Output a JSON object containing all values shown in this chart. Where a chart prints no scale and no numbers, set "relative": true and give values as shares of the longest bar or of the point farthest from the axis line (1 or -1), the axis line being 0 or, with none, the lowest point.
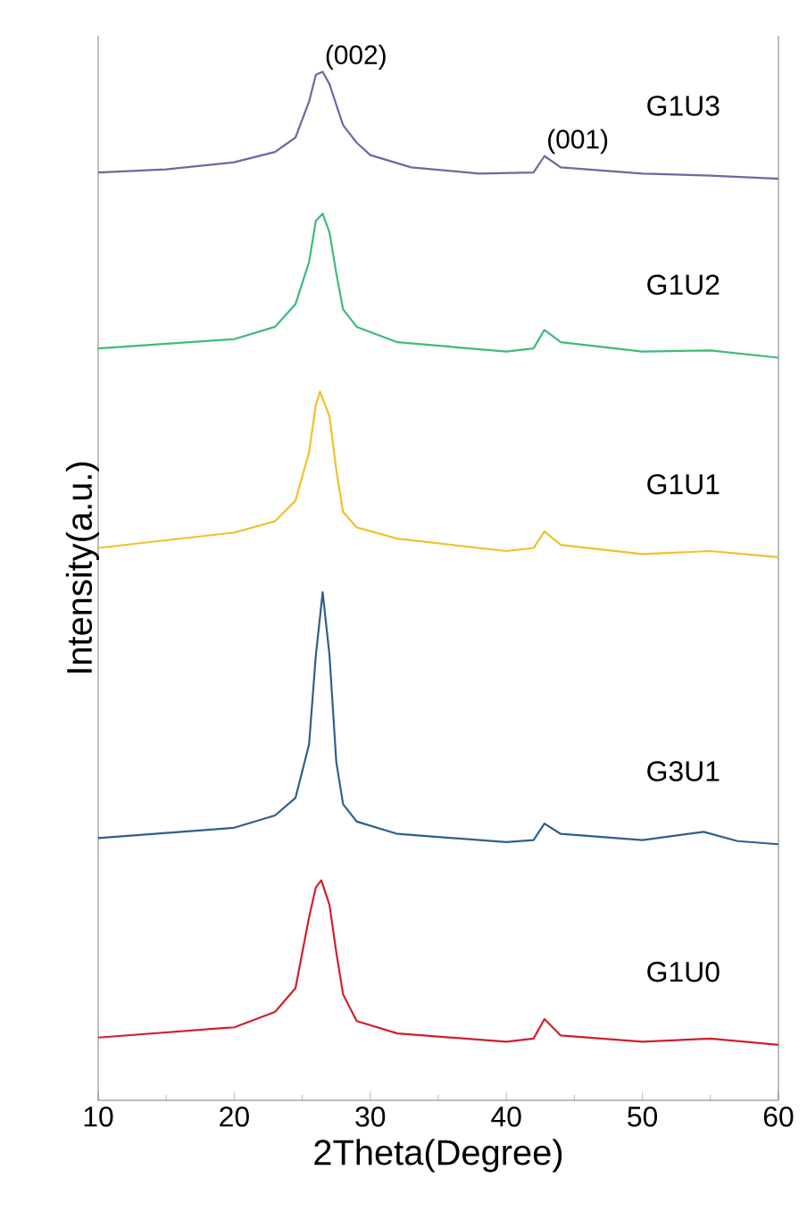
{
  "chart_data": {
    "type": "line",
    "relative": true,
    "xlabel": "2Theta(Degree)",
    "ylabel": "Intensity(a.u.)",
    "xlim": [
      10,
      60
    ],
    "xticks": [
      10,
      20,
      30,
      40,
      50,
      60
    ],
    "legend": false,
    "grid": false,
    "marker": "none",
    "line_style": "solid",
    "annotations": [
      {
        "text": "(002)",
        "x": 26.5,
        "y": 1.0
      },
      {
        "text": "(001)",
        "x": 42.8,
        "y": 0.918
      }
    ],
    "series": [
      {
        "name": "G1U3",
        "color": "#6a6aa0",
        "x": [
          10,
          15,
          20,
          23,
          24.5,
          25.5,
          26,
          26.5,
          27,
          28,
          29,
          30,
          33,
          38,
          42,
          42.8,
          44,
          50,
          55,
          60
        ],
        "values": [
          0.902,
          0.905,
          0.912,
          0.922,
          0.936,
          0.971,
          0.997,
          1.0,
          0.988,
          0.948,
          0.931,
          0.919,
          0.907,
          0.901,
          0.902,
          0.918,
          0.907,
          0.901,
          0.899,
          0.896
        ]
      },
      {
        "name": "G1U2",
        "color": "#3dbb7a",
        "x": [
          10,
          20,
          23,
          24.5,
          25.5,
          26,
          26.5,
          27,
          27.5,
          28,
          29,
          32,
          40,
          42,
          42.8,
          44,
          50,
          55,
          60
        ],
        "values": [
          0.731,
          0.74,
          0.752,
          0.774,
          0.815,
          0.855,
          0.862,
          0.844,
          0.804,
          0.769,
          0.752,
          0.737,
          0.728,
          0.731,
          0.749,
          0.737,
          0.728,
          0.729,
          0.722
        ]
      },
      {
        "name": "G1U1",
        "color": "#efc12a",
        "x": [
          10,
          20,
          23,
          24.5,
          25.5,
          26,
          26.3,
          27,
          27.5,
          28,
          29,
          32,
          40,
          42,
          42.8,
          44,
          50,
          55,
          60
        ],
        "values": [
          0.537,
          0.552,
          0.563,
          0.583,
          0.63,
          0.676,
          0.689,
          0.665,
          0.613,
          0.572,
          0.557,
          0.546,
          0.534,
          0.537,
          0.553,
          0.54,
          0.531,
          0.534,
          0.528
        ]
      },
      {
        "name": "G3U1",
        "color": "#2f5f8a",
        "x": [
          10,
          20,
          23,
          24.5,
          25.5,
          26,
          26.5,
          27,
          27.5,
          28,
          29,
          32,
          40,
          42,
          42.8,
          44,
          50,
          54.5,
          57,
          60
        ],
        "values": [
          0.255,
          0.265,
          0.277,
          0.294,
          0.346,
          0.433,
          0.494,
          0.433,
          0.329,
          0.288,
          0.271,
          0.259,
          0.251,
          0.253,
          0.269,
          0.259,
          0.253,
          0.261,
          0.252,
          0.249
        ]
      },
      {
        "name": "G1U0",
        "color": "#d0202a",
        "x": [
          10,
          20,
          23,
          24.5,
          25.5,
          26,
          26.4,
          27,
          27.5,
          28,
          29,
          32,
          40,
          42,
          42.8,
          44,
          50,
          55,
          60
        ],
        "values": [
          0.061,
          0.071,
          0.086,
          0.109,
          0.178,
          0.207,
          0.214,
          0.19,
          0.144,
          0.103,
          0.077,
          0.065,
          0.057,
          0.06,
          0.079,
          0.063,
          0.057,
          0.06,
          0.054
        ]
      }
    ]
  }
}
